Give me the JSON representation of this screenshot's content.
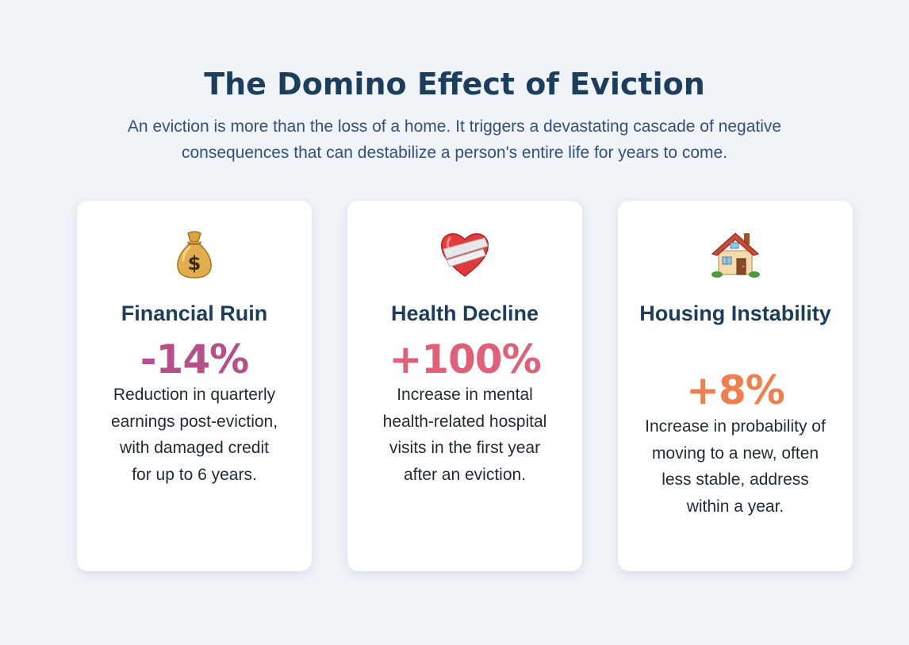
{
  "header": {
    "title": "The Domino Effect of Eviction",
    "subtitle": "An eviction is more than the loss of a home. It triggers a devastating cascade of negative consequences that can destabilize a person's entire life for years to come."
  },
  "cards": [
    {
      "icon": "money-bag-icon",
      "title": "Financial Ruin",
      "stat": "-14%",
      "stat_color": "#b5508a",
      "description": "Reduction in quarterly earnings post-eviction, with damaged credit for up to 6 years."
    },
    {
      "icon": "bandaged-heart-icon",
      "title": "Health Decline",
      "stat": "+100%",
      "stat_color": "#e0607a",
      "description": "Increase in mental health-related hospital visits in the first year after an eviction."
    },
    {
      "icon": "house-icon",
      "title": "Housing Instability",
      "stat": "+8%",
      "stat_color": "#ef7f4f",
      "description": "Increase in probability of moving to a new, often less stable, address within a year."
    }
  ]
}
